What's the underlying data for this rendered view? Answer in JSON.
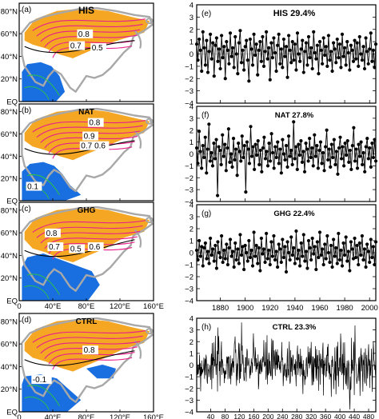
{
  "maps": [
    {
      "panel": "(a)",
      "title": "HIS",
      "contour_labels": [
        "0.8",
        "0.7",
        "0.5"
      ]
    },
    {
      "panel": "(b)",
      "title": "NAT",
      "contour_labels": [
        "0.8",
        "0.9",
        "0.7",
        "0.6",
        "0.1"
      ]
    },
    {
      "panel": "(c)",
      "title": "GHG",
      "contour_labels": [
        "0.8",
        "0.7",
        "0.5",
        "0.6"
      ]
    },
    {
      "panel": "(d)",
      "title": "CTRL",
      "contour_labels": [
        "0.8",
        "-0.1"
      ]
    }
  ],
  "map_axes": {
    "lat_labels": [
      "80°N",
      "60°N",
      "40°N",
      "20°N",
      "EQ"
    ],
    "lon_labels": [
      "0",
      "40°E",
      "80°E",
      "120°E",
      "160°E"
    ]
  },
  "colors": {
    "positive_fill": "#f5a623",
    "negative_fill": "#1a6fe0",
    "contour_pos": "#e8208a",
    "contour_neg": "#28c04a",
    "land_outline": "#a8a8a8",
    "series": "#000000"
  },
  "chart_data": [
    {
      "type": "line",
      "panel": "(e)",
      "title": "HIS 29.4%",
      "x_start": 1861,
      "x_end": 2005,
      "ylim": [
        -4,
        4
      ],
      "yticks": [
        4,
        3,
        2,
        1,
        0,
        -1,
        -2,
        -3,
        -4
      ],
      "markers": true,
      "values": [
        0.8,
        -0.5,
        1.2,
        0.3,
        -1.4,
        1.8,
        0.5,
        -0.9,
        1.1,
        -1.5,
        0.2,
        1.6,
        -0.4,
        0.9,
        -1.8,
        0.7,
        1.3,
        -0.6,
        0.4,
        -1.2,
        1.5,
        -0.3,
        0.6,
        -2.0,
        1.0,
        0.3,
        -0.8,
        1.7,
        -0.2,
        0.5,
        -1.1,
        1.4,
        0.0,
        -1.6,
        0.9,
        1.9,
        -0.7,
        0.3,
        -1.3,
        0.6,
        1.1,
        -0.5,
        -2.2,
        1.2,
        0.4,
        -0.9,
        1.6,
        -0.1,
        0.8,
        -1.7,
        0.3,
        1.0,
        -0.6,
        1.4,
        -1.0,
        0.2,
        1.8,
        -0.4,
        0.5,
        -2.1,
        0.9,
        -0.3,
        1.3,
        0.1,
        -1.4,
        0.7,
        1.6,
        -0.8,
        0.4,
        -1.1,
        1.2,
        -0.2,
        0.6,
        -1.9,
        1.5,
        0.3,
        -0.7,
        1.0,
        -0.5,
        0.8,
        -1.3,
        1.7,
        0.0,
        -0.6,
        0.4,
        1.1,
        -1.5,
        0.2,
        0.9,
        -0.9,
        1.4,
        -0.3,
        0.5,
        -1.2,
        1.8,
        0.1,
        -0.4,
        0.7,
        -1.6,
        1.0,
        0.3,
        -0.8,
        1.3,
        -0.1,
        0.6,
        -1.0,
        1.5,
        -0.5,
        0.2,
        -1.4,
        0.9,
        0.4,
        -0.7,
        1.2,
        -0.3,
        0.8,
        -1.1,
        1.6,
        -0.2,
        0.5,
        -0.9,
        1.0,
        0.1,
        -1.3,
        0.7,
        0.3,
        -0.6,
        1.1,
        -0.4,
        0.9,
        -1.0,
        1.4,
        0.0,
        -0.5,
        0.6,
        -1.2,
        1.3,
        0.2,
        -0.8,
        0.4,
        1.7,
        -0.6,
        0.3,
        -1.1,
        0.8
      ]
    },
    {
      "type": "line",
      "panel": "(f)",
      "title": "NAT 27.8%",
      "x_start": 1861,
      "x_end": 2005,
      "ylim": [
        -4,
        4
      ],
      "yticks": [
        4,
        3,
        2,
        1,
        0,
        -1,
        -2,
        -3,
        -4
      ],
      "markers": true,
      "values": [
        0.5,
        -0.8,
        1.9,
        0.2,
        -1.2,
        0.7,
        -0.3,
        1.4,
        -1.6,
        0.4,
        2.5,
        -0.6,
        0.1,
        -1.0,
        0.9,
        -0.4,
        1.2,
        -3.5,
        0.6,
        0.3,
        -0.9,
        1.6,
        -0.2,
        0.8,
        -1.4,
        0.5,
        2.1,
        -0.7,
        0.0,
        -1.1,
        1.3,
        -0.5,
        0.4,
        -1.8,
        0.9,
        0.2,
        -0.6,
        1.5,
        -0.3,
        0.7,
        -3.2,
        1.0,
        0.4,
        -0.8,
        2.3,
        -0.2,
        0.6,
        -1.3,
        0.8,
        -0.1,
        1.1,
        -0.9,
        0.3,
        -1.5,
        0.5,
        1.4,
        -0.4,
        0.2,
        -1.0,
        0.9,
        -0.6,
        1.7,
        0.1,
        -1.2,
        0.6,
        -0.3,
        1.0,
        -0.8,
        0.4,
        -1.6,
        1.2,
        0.0,
        -0.5,
        0.7,
        -1.1,
        1.5,
        -0.2,
        0.3,
        -0.9,
        2.7,
        -0.4,
        0.6,
        -1.3,
        0.8,
        -0.1,
        1.1,
        -0.7,
        0.2,
        -1.5,
        0.9,
        0.4,
        -0.6,
        1.3,
        -0.3,
        0.5,
        -1.0,
        1.6,
        -0.2,
        0.7,
        -1.2,
        0.3,
        1.0,
        -0.8,
        0.1,
        -1.4,
        0.6,
        2.0,
        -0.5,
        0.4,
        -1.1,
        0.8,
        -0.3,
        1.2,
        -0.9,
        0.2,
        -1.7,
        0.5,
        1.4,
        -0.4,
        0.6,
        -1.0,
        0.9,
        -0.1,
        1.1,
        -0.7,
        0.3,
        -1.3,
        0.7,
        2.2,
        -0.6,
        0.4,
        -1.2,
        0.8,
        -0.2,
        1.0,
        -0.9,
        0.1,
        -1.5,
        0.6,
        1.3,
        -0.4,
        0.5,
        -1.1,
        0.9,
        -0.3,
        1.2,
        -0.6
      ]
    },
    {
      "type": "line",
      "panel": "(g)",
      "title": "GHG 22.4%",
      "x_start": 1861,
      "x_end": 2005,
      "ylim": [
        -4,
        4
      ],
      "yticks": [
        4,
        3,
        2,
        1,
        0,
        -1,
        -2,
        -3,
        -4
      ],
      "markers": true,
      "values": [
        0.2,
        -0.6,
        1.0,
        -0.3,
        0.5,
        -1.1,
        0.4,
        0.8,
        -0.5,
        0.1,
        -0.9,
        1.2,
        -0.2,
        0.3,
        -0.7,
        0.6,
        -1.3,
        0.9,
        0.0,
        -0.4,
        1.4,
        -0.8,
        0.2,
        -0.5,
        0.7,
        -1.0,
        0.4,
        1.1,
        -0.3,
        0.1,
        -1.2,
        0.8,
        -0.6,
        0.3,
        -0.9,
        1.5,
        -0.2,
        0.5,
        -1.4,
        0.6,
        0.0,
        -0.7,
        1.0,
        -0.4,
        0.2,
        -1.1,
        1.7,
        -0.3,
        0.6,
        -0.9,
        0.4,
        -1.5,
        1.2,
        -0.1,
        0.3,
        -0.8,
        1.6,
        -0.5,
        0.2,
        -1.0,
        0.9,
        -0.3,
        1.4,
        -0.6,
        0.1,
        -1.2,
        0.7,
        0.3,
        -0.8,
        1.1,
        -0.4,
        0.5,
        -1.6,
        0.9,
        0.0,
        -0.6,
        1.3,
        -0.2,
        0.4,
        -0.9,
        1.8,
        -0.5,
        0.2,
        -1.1,
        0.8,
        -0.3,
        1.5,
        -0.7,
        0.1,
        -1.3,
        1.0,
        0.4,
        -0.6,
        1.2,
        -0.1,
        0.5,
        -1.4,
        0.9,
        -0.4,
        1.7,
        -0.2,
        0.3,
        -1.0,
        0.7,
        -0.5,
        1.4,
        0.0,
        -0.8,
        0.6,
        -1.2,
        1.1,
        -0.3,
        0.4,
        -0.9,
        1.6,
        -0.6,
        0.2,
        -1.1,
        0.8,
        -0.2,
        1.3,
        -0.7,
        0.1,
        -1.5,
        0.9,
        0.3,
        -0.5,
        1.2,
        -0.4,
        0.6,
        -1.0,
        0.8,
        -0.2,
        1.4,
        -0.6,
        0.3,
        -1.2,
        0.7,
        0.1,
        -0.8,
        1.1,
        -0.4,
        0.5,
        -1.0,
        0.9
      ]
    },
    {
      "type": "line",
      "panel": "(h)",
      "title": "CTRL 23.3%",
      "x_start": 1,
      "x_end": 500,
      "xticks": [
        40,
        80,
        120,
        160,
        200,
        240,
        280,
        320,
        360,
        400,
        440,
        480
      ],
      "ylim": [
        -4,
        4
      ],
      "yticks": [
        4,
        3,
        2,
        1,
        0,
        -1,
        -2,
        -3,
        -4
      ],
      "markers": false,
      "synthetic_noise": true,
      "seed": 7
    }
  ],
  "ts_axes": {
    "xticks_years": [
      1880,
      1900,
      1920,
      1940,
      1960,
      1980,
      2000
    ]
  }
}
